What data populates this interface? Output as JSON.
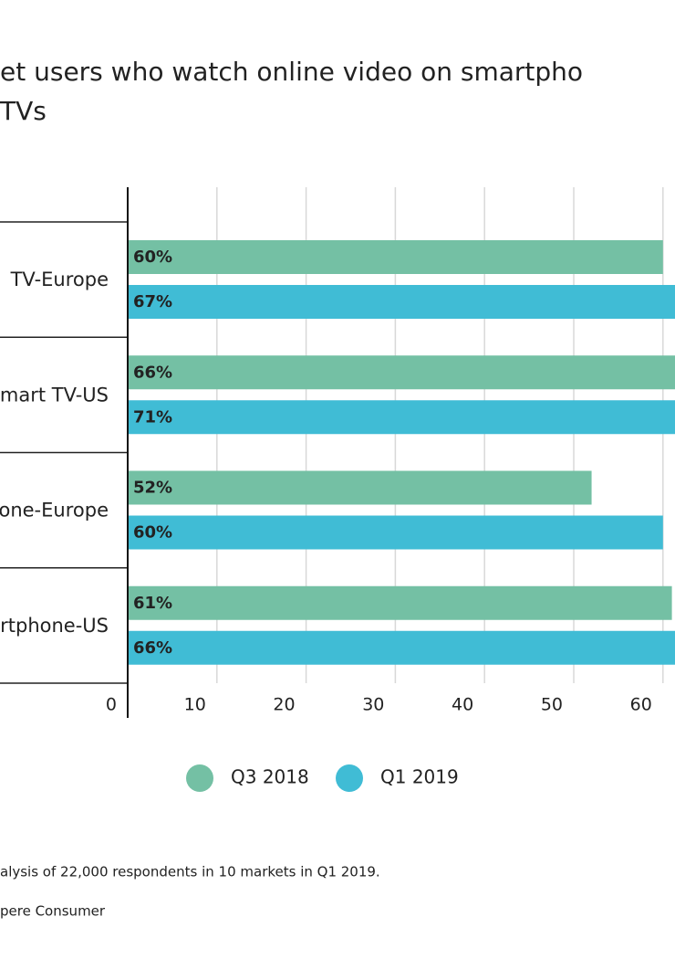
{
  "chart_data": {
    "type": "bar",
    "orientation": "horizontal",
    "title": [
      "et users who watch online video on smartpho",
      "TVs"
    ],
    "categories": [
      "TV-Europe",
      "mart TV-US",
      "one-Europe",
      "rtphone-US"
    ],
    "series": [
      {
        "name": "Q3 2018",
        "color": "#74c0a4",
        "values": [
          60,
          66,
          52,
          61
        ],
        "value_labels": [
          "60%",
          "66%",
          "52%",
          "61%"
        ]
      },
      {
        "name": "Q1 2019",
        "color": "#40bcd5",
        "values": [
          67,
          71,
          60,
          66
        ],
        "value_labels": [
          "67%",
          "71%",
          "60%",
          "66%"
        ]
      }
    ],
    "xlim": [
      0,
      70
    ],
    "xticks": [
      0,
      10,
      20,
      30,
      40,
      50,
      60
    ],
    "grid": true,
    "notes": [
      "alysis of 22,000 respondents in 10 markets in Q1 2019.",
      "pere Consumer"
    ]
  }
}
